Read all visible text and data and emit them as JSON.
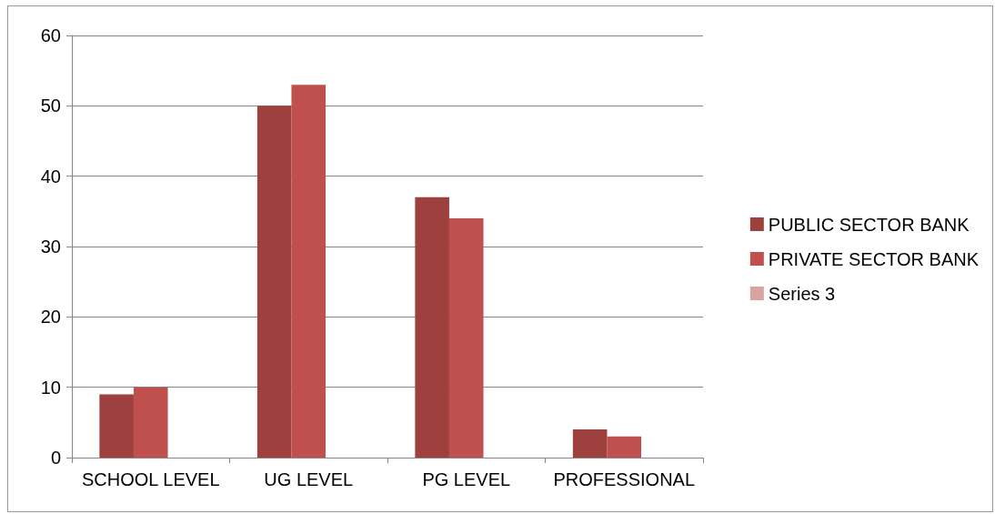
{
  "chart_data": {
    "type": "bar",
    "categories": [
      "SCHOOL LEVEL",
      "UG LEVEL",
      "PG LEVEL",
      "PROFESSIONAL"
    ],
    "series": [
      {
        "name": "PUBLIC SECTOR BANK",
        "color": "#9e413e",
        "values": [
          9,
          50,
          37,
          4
        ]
      },
      {
        "name": "PRIVATE SECTOR BANK",
        "color": "#c0504d",
        "values": [
          10,
          53,
          34,
          3
        ]
      },
      {
        "name": "Series 3",
        "color": "#d9a3a1",
        "values": [
          null,
          null,
          null,
          null
        ]
      }
    ],
    "ylim": [
      0,
      60
    ],
    "yticks": [
      0,
      10,
      20,
      30,
      40,
      50,
      60
    ],
    "grid": "y",
    "legend": "right"
  }
}
